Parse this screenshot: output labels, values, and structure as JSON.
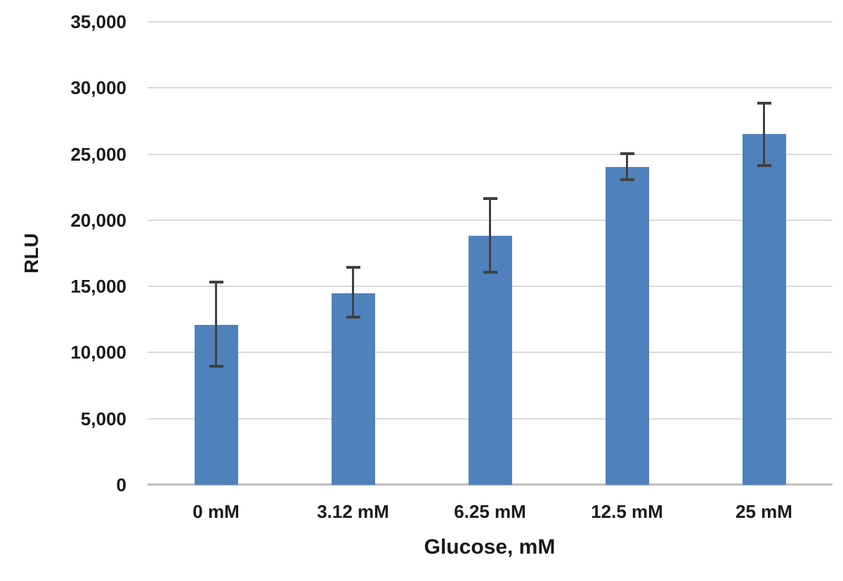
{
  "chart_data": {
    "type": "bar",
    "title": "",
    "xlabel": "Glucose, mM",
    "ylabel": "RLU",
    "categories": [
      "0 mM",
      "3.12 mM",
      "6.25 mM",
      "12.5 mM",
      "25 mM"
    ],
    "values": [
      12100,
      14500,
      18800,
      24000,
      26500
    ],
    "error_upper": [
      15400,
      16500,
      21700,
      25100,
      28900
    ],
    "error_lower": [
      8900,
      12600,
      16000,
      23000,
      24100
    ],
    "ylim": [
      0,
      35000
    ],
    "yticks": [
      0,
      5000,
      10000,
      15000,
      20000,
      25000,
      30000,
      35000
    ],
    "ytick_labels": [
      "0",
      "5,000",
      "10,000",
      "15,000",
      "20,000",
      "25,000",
      "30,000",
      "35,000"
    ],
    "grid": true,
    "legend": "none",
    "colors": {
      "bar": "#4F81BD",
      "error_bar": "#404040",
      "gridline": "#D9D9D9",
      "axis_line": "#BFBFBF",
      "text": "#1A1A1A",
      "background": "#FFFFFF"
    }
  }
}
